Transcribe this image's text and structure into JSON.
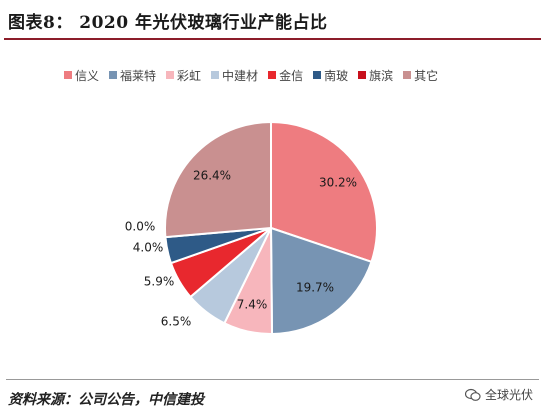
{
  "header": {
    "title": "图表8：  2020 年光伏玻璃行业产能占比"
  },
  "chart_data": {
    "type": "pie",
    "series": [
      {
        "name": "信义",
        "value": 30.2,
        "label": "30.2%",
        "color": "#ee7c80"
      },
      {
        "name": "福莱特",
        "value": 19.7,
        "label": "19.7%",
        "color": "#7794b3"
      },
      {
        "name": "彩虹",
        "value": 7.4,
        "label": "7.4%",
        "color": "#f7b6bc"
      },
      {
        "name": "中建材",
        "value": 6.5,
        "label": "6.5%",
        "color": "#b7c9dd"
      },
      {
        "name": "金信",
        "value": 5.9,
        "label": "5.9%",
        "color": "#e8282e"
      },
      {
        "name": "南玻",
        "value": 4.0,
        "label": "4.0%",
        "color": "#2e5a87"
      },
      {
        "name": "旗滨",
        "value": 0.0,
        "label": "0.0%",
        "color": "#c8101c"
      },
      {
        "name": "其它",
        "value": 26.4,
        "label": "26.4%",
        "color": "#c99090"
      }
    ],
    "legend_position": "top"
  },
  "footer": {
    "source": "资料来源：公司公告，中信建投",
    "watermark": "全球光伏"
  }
}
